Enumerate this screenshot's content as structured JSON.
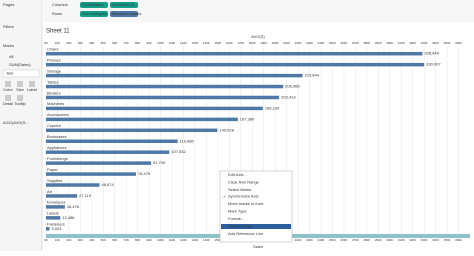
{
  "ui": {
    "left": {
      "pages": "Pages",
      "filters": "Filters",
      "marks": "Marks",
      "all": "All",
      "measure": "SUM(Sales)",
      "mark_type": "Bar",
      "buttons": [
        "Color",
        "Size",
        "Label",
        "Detail",
        "Tooltip"
      ],
      "agg": "AGG(AVG(S..."
    },
    "shelves": {
      "columns": "Columns",
      "rows": "Rows",
      "column_pills": [
        "SUM(Sales)",
        "AGG(AVG(S..."
      ],
      "row_pills": [
        "Sub-Category",
        "Measure Names"
      ]
    },
    "sheet_title": "Sheet 11",
    "menu": [
      "Edit Axis...",
      "Clear Axis Range",
      "Select Marks",
      "Synchronize Axis",
      "Move marks to front",
      "Mark Type",
      "Format...",
      "Show Header",
      "Add Reference Line"
    ]
  },
  "chart_data": {
    "type": "bar",
    "orientation": "horizontal",
    "title": "AVG(S)",
    "x_label": "Sales",
    "color": "#4e79a7",
    "categories": [
      "Chairs",
      "Phones",
      "Storage",
      "Tables",
      "Binders",
      "Machines",
      "Accessories",
      "Copiers",
      "Bookcases",
      "Appliances",
      "Furnishings",
      "Paper",
      "Supplies",
      "Art",
      "Envelopes",
      "Labels",
      "Fasteners"
    ],
    "values": [
      328449,
      330007,
      223844,
      206966,
      203413,
      189239,
      167380,
      149528,
      114880,
      107532,
      91705,
      78479,
      46674,
      27119,
      16476,
      12486,
      3024
    ],
    "value_labels": [
      "328,449",
      "330,007",
      "223,844",
      "206,966",
      "203,413",
      "189,239",
      "167,380",
      "149,528",
      "114,880",
      "107,532",
      "91,705",
      "78,479",
      "46,674",
      "27,119",
      "16,476",
      "12,486",
      "3,024"
    ],
    "xlim": [
      0,
      370000
    ],
    "xticks": [
      {
        "value": 0,
        "label": "0K"
      },
      {
        "value": 10000,
        "label": "10K"
      },
      {
        "value": 20000,
        "label": "20K"
      },
      {
        "value": 30000,
        "label": "30K"
      },
      {
        "value": 40000,
        "label": "40K"
      },
      {
        "value": 50000,
        "label": "50K"
      },
      {
        "value": 60000,
        "label": "60K"
      },
      {
        "value": 70000,
        "label": "70K"
      },
      {
        "value": 80000,
        "label": "80K"
      },
      {
        "value": 90000,
        "label": "90K"
      },
      {
        "value": 100000,
        "label": "100K"
      },
      {
        "value": 110000,
        "label": "110K"
      },
      {
        "value": 120000,
        "label": "120K"
      },
      {
        "value": 130000,
        "label": "130K"
      },
      {
        "value": 140000,
        "label": "140K"
      },
      {
        "value": 150000,
        "label": "150K"
      },
      {
        "value": 160000,
        "label": "160K"
      },
      {
        "value": 170000,
        "label": "170K"
      },
      {
        "value": 180000,
        "label": "180K"
      },
      {
        "value": 190000,
        "label": "190K"
      },
      {
        "value": 200000,
        "label": "200K"
      },
      {
        "value": 210000,
        "label": "210K"
      },
      {
        "value": 220000,
        "label": "220K"
      },
      {
        "value": 230000,
        "label": "230K"
      },
      {
        "value": 240000,
        "label": "240K"
      },
      {
        "value": 250000,
        "label": "250K"
      },
      {
        "value": 260000,
        "label": "260K"
      },
      {
        "value": 270000,
        "label": "270K"
      },
      {
        "value": 280000,
        "label": "280K"
      },
      {
        "value": 290000,
        "label": "290K"
      },
      {
        "value": 300000,
        "label": "300K"
      },
      {
        "value": 310000,
        "label": "310K"
      },
      {
        "value": 320000,
        "label": "320K"
      },
      {
        "value": 330000,
        "label": "330K"
      },
      {
        "value": 340000,
        "label": "340K"
      },
      {
        "value": 350000,
        "label": "350K"
      },
      {
        "value": 360000,
        "label": "360K"
      }
    ],
    "grid": true
  }
}
